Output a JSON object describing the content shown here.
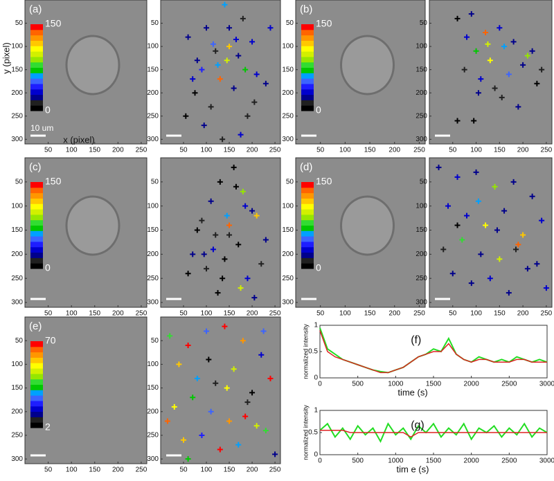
{
  "chart_data": [
    {
      "type": "image",
      "label": "(a)",
      "ylabel": "y (pixel)",
      "xlabel": "x (pixel)",
      "scalebar": "10 um",
      "cell": true,
      "colormap": [
        "#000000",
        "#202020",
        "#00008b",
        "#0000cd",
        "#1e1eff",
        "#3c64ff",
        "#00a0ff",
        "#00c800",
        "#32dc32",
        "#96e600",
        "#d2f000",
        "#ffff00",
        "#ffc800",
        "#ff9600",
        "#ff6400",
        "#ff0000"
      ],
      "clim": [
        0,
        150
      ],
      "cticks": [
        0,
        150
      ],
      "xlim": [
        0,
        262
      ],
      "ylim": [
        0,
        310
      ],
      "xticks": [
        50,
        100,
        150,
        200,
        250
      ],
      "yticks": [
        50,
        100,
        150,
        200,
        250,
        300
      ]
    },
    {
      "type": "scatter",
      "xlim": [
        0,
        262
      ],
      "ylim": [
        0,
        310
      ],
      "xticks": [
        50,
        100,
        150,
        200,
        250
      ],
      "yticks": [
        50,
        100,
        150,
        200,
        250,
        300
      ],
      "clim": [
        0,
        150
      ],
      "x": [
        140,
        100,
        60,
        180,
        200,
        120,
        150,
        90,
        170,
        210,
        130,
        75,
        160,
        110,
        190,
        240,
        55,
        145,
        125,
        95,
        175,
        230,
        165,
        115,
        80,
        205,
        135,
        185,
        150,
        70
      ],
      "y": [
        10,
        60,
        80,
        40,
        90,
        110,
        100,
        150,
        120,
        160,
        170,
        200,
        190,
        230,
        250,
        60,
        250,
        130,
        140,
        270,
        290,
        180,
        85,
        95,
        130,
        220,
        300,
        150,
        60,
        170
      ],
      "values": [
        60,
        20,
        25,
        10,
        30,
        15,
        120,
        40,
        20,
        35,
        140,
        5,
        25,
        15,
        10,
        30,
        8,
        100,
        60,
        20,
        35,
        22,
        30,
        50,
        28,
        10,
        15,
        70,
        25,
        33
      ]
    },
    {
      "type": "image",
      "label": "(b)",
      "cell": true,
      "colormap": [
        "#000000",
        "#202020",
        "#00008b",
        "#0000cd",
        "#1e1eff",
        "#3c64ff",
        "#00a0ff",
        "#00c800",
        "#32dc32",
        "#96e600",
        "#d2f000",
        "#ffff00",
        "#ffc800",
        "#ff9600",
        "#ff6400",
        "#ff0000"
      ],
      "clim": [
        0,
        150
      ],
      "cticks": [
        0,
        150
      ],
      "xlim": [
        0,
        262
      ],
      "ylim": [
        0,
        310
      ],
      "xticks": [
        50,
        100,
        150,
        200,
        250
      ],
      "yticks": [
        50,
        100,
        150,
        200,
        250,
        300
      ]
    },
    {
      "type": "scatter",
      "xlim": [
        0,
        262
      ],
      "ylim": [
        0,
        310
      ],
      "xticks": [
        50,
        100,
        150,
        200,
        250
      ],
      "yticks": [
        50,
        100,
        150,
        200,
        250,
        300
      ],
      "clim": [
        0,
        150
      ],
      "x": [
        60,
        90,
        120,
        150,
        100,
        180,
        210,
        75,
        130,
        160,
        200,
        230,
        110,
        140,
        170,
        95,
        190,
        220,
        80,
        125,
        155,
        240,
        60,
        105
      ],
      "y": [
        40,
        30,
        70,
        60,
        110,
        90,
        120,
        150,
        130,
        100,
        140,
        180,
        170,
        190,
        160,
        260,
        230,
        110,
        80,
        95,
        210,
        150,
        260,
        200
      ],
      "values": [
        5,
        25,
        140,
        30,
        70,
        20,
        90,
        10,
        110,
        60,
        25,
        8,
        30,
        15,
        50,
        5,
        20,
        28,
        35,
        100,
        18,
        12,
        6,
        22
      ]
    },
    {
      "type": "image",
      "label": "(c)",
      "cell": true,
      "colormap": [
        "#000000",
        "#202020",
        "#00008b",
        "#0000cd",
        "#1e1eff",
        "#3c64ff",
        "#00a0ff",
        "#00c800",
        "#32dc32",
        "#96e600",
        "#d2f000",
        "#ffff00",
        "#ffc800",
        "#ff9600",
        "#ff6400",
        "#ff0000"
      ],
      "clim": [
        0,
        150
      ],
      "cticks": [
        0,
        150
      ],
      "xlim": [
        0,
        262
      ],
      "ylim": [
        0,
        310
      ],
      "xticks": [
        50,
        100,
        150,
        200,
        250
      ],
      "yticks": [
        50,
        100,
        150,
        200,
        250,
        300
      ]
    },
    {
      "type": "scatter",
      "xlim": [
        0,
        262
      ],
      "ylim": [
        0,
        310
      ],
      "xticks": [
        50,
        100,
        150,
        200,
        250
      ],
      "yticks": [
        50,
        100,
        150,
        200,
        250,
        300
      ],
      "clim": [
        0,
        150
      ],
      "x": [
        160,
        130,
        110,
        180,
        200,
        90,
        150,
        120,
        170,
        210,
        70,
        140,
        100,
        190,
        230,
        60,
        145,
        125,
        95,
        175,
        220,
        165,
        115,
        80,
        205,
        135,
        185,
        150
      ],
      "y": [
        20,
        50,
        90,
        70,
        110,
        130,
        140,
        160,
        180,
        120,
        200,
        210,
        230,
        250,
        170,
        240,
        120,
        280,
        200,
        270,
        220,
        60,
        190,
        150,
        290,
        250,
        100,
        160
      ],
      "values": [
        5,
        8,
        20,
        90,
        25,
        10,
        140,
        15,
        5,
        120,
        22,
        8,
        10,
        30,
        25,
        5,
        60,
        8,
        28,
        100,
        12,
        6,
        35,
        5,
        20,
        8,
        30,
        10
      ]
    },
    {
      "type": "image",
      "label": "(d)",
      "cell": true,
      "colormap": [
        "#000000",
        "#202020",
        "#00008b",
        "#0000cd",
        "#1e1eff",
        "#3c64ff",
        "#00a0ff",
        "#00c800",
        "#32dc32",
        "#96e600",
        "#d2f000",
        "#ffff00",
        "#ffc800",
        "#ff9600",
        "#ff6400",
        "#ff0000"
      ],
      "clim": [
        0,
        150
      ],
      "cticks": [
        0,
        150
      ],
      "xlim": [
        0,
        262
      ],
      "ylim": [
        0,
        310
      ],
      "xticks": [
        50,
        100,
        150,
        200,
        250
      ],
      "yticks": [
        50,
        100,
        150,
        200,
        250,
        300
      ]
    },
    {
      "type": "scatter",
      "xlim": [
        0,
        262
      ],
      "ylim": [
        0,
        310
      ],
      "xticks": [
        50,
        100,
        150,
        200,
        250
      ],
      "yticks": [
        50,
        100,
        150,
        200,
        250,
        300
      ],
      "clim": [
        0,
        150
      ],
      "x": [
        20,
        60,
        100,
        140,
        180,
        220,
        40,
        80,
        120,
        160,
        200,
        240,
        30,
        70,
        110,
        150,
        190,
        230,
        50,
        90,
        130,
        170,
        210,
        250,
        105,
        145,
        185,
        60
      ],
      "y": [
        20,
        40,
        30,
        60,
        50,
        80,
        100,
        120,
        140,
        110,
        160,
        130,
        190,
        170,
        200,
        210,
        180,
        220,
        240,
        260,
        250,
        280,
        230,
        270,
        90,
        150,
        190,
        140
      ],
      "values": [
        25,
        30,
        20,
        90,
        28,
        22,
        30,
        35,
        110,
        25,
        120,
        30,
        10,
        80,
        20,
        100,
        140,
        25,
        28,
        22,
        30,
        25,
        20,
        30,
        60,
        20,
        10,
        5
      ]
    },
    {
      "type": "image",
      "label": "(e)",
      "cell": false,
      "colormap": [
        "#000000",
        "#202020",
        "#00008b",
        "#0000cd",
        "#1e1eff",
        "#3c64ff",
        "#00a0ff",
        "#00c800",
        "#32dc32",
        "#96e600",
        "#d2f000",
        "#ffff00",
        "#ffc800",
        "#ff9600",
        "#ff6400",
        "#ff0000"
      ],
      "clim": [
        2,
        70
      ],
      "cticks": [
        2,
        70
      ],
      "xlim": [
        0,
        262
      ],
      "ylim": [
        0,
        310
      ],
      "xticks": [
        50,
        100,
        150,
        200,
        250
      ],
      "yticks": [
        50,
        100,
        150,
        200,
        250,
        300
      ]
    },
    {
      "type": "scatter",
      "xlim": [
        0,
        262
      ],
      "ylim": [
        0,
        310
      ],
      "xticks": [
        50,
        100,
        150,
        200,
        250
      ],
      "yticks": [
        50,
        100,
        150,
        200,
        250,
        300
      ],
      "clim": [
        2,
        70
      ],
      "x": [
        20,
        60,
        100,
        140,
        180,
        220,
        40,
        80,
        120,
        160,
        200,
        240,
        30,
        70,
        110,
        150,
        190,
        230,
        50,
        90,
        130,
        170,
        210,
        250,
        105,
        145,
        185,
        60,
        225,
        15
      ],
      "y": [
        40,
        60,
        30,
        20,
        50,
        80,
        100,
        130,
        140,
        110,
        160,
        130,
        190,
        170,
        200,
        220,
        180,
        240,
        260,
        250,
        280,
        270,
        230,
        290,
        90,
        150,
        210,
        300,
        30,
        220
      ],
      "values": [
        40,
        68,
        25,
        68,
        60,
        15,
        55,
        30,
        10,
        45,
        3,
        68,
        50,
        35,
        25,
        60,
        8,
        40,
        55,
        20,
        66,
        30,
        45,
        12,
        5,
        50,
        68,
        35,
        25,
        62
      ]
    },
    {
      "type": "line",
      "label": "(f)",
      "ylabel": "normalized intensity",
      "xlabel": "time (s)",
      "xlim": [
        0,
        3000
      ],
      "ylim": [
        0,
        1
      ],
      "xticks": [
        0,
        500,
        1000,
        1500,
        2000,
        2500,
        3000
      ],
      "yticks": [
        0,
        0.5,
        1
      ],
      "x": [
        0,
        100,
        200,
        300,
        400,
        500,
        600,
        700,
        800,
        900,
        1000,
        1100,
        1200,
        1300,
        1400,
        1500,
        1600,
        1700,
        1800,
        1900,
        2000,
        2100,
        2200,
        2300,
        2400,
        2500,
        2600,
        2700,
        2800,
        2900,
        3000
      ],
      "series": [
        {
          "color": "#22dd22",
          "values": [
            0.95,
            0.55,
            0.45,
            0.35,
            0.3,
            0.25,
            0.2,
            0.15,
            0.12,
            0.1,
            0.15,
            0.2,
            0.3,
            0.4,
            0.45,
            0.55,
            0.5,
            0.75,
            0.45,
            0.35,
            0.3,
            0.4,
            0.35,
            0.3,
            0.35,
            0.3,
            0.4,
            0.35,
            0.3,
            0.35,
            0.3
          ]
        },
        {
          "color": "#dd2222",
          "values": [
            0.9,
            0.5,
            0.4,
            0.35,
            0.3,
            0.25,
            0.2,
            0.15,
            0.1,
            0.1,
            0.15,
            0.2,
            0.3,
            0.4,
            0.45,
            0.5,
            0.5,
            0.65,
            0.45,
            0.35,
            0.3,
            0.35,
            0.35,
            0.3,
            0.3,
            0.3,
            0.35,
            0.35,
            0.3,
            0.3,
            0.3
          ]
        }
      ]
    },
    {
      "type": "line",
      "label": "(g)",
      "ylabel": "normalized intensity",
      "xlabel": "tim e (s)",
      "xlim": [
        0,
        3000
      ],
      "ylim": [
        0,
        1
      ],
      "xticks": [
        0,
        500,
        1000,
        1500,
        2000,
        2500,
        3000
      ],
      "yticks": [
        0,
        0.5,
        1
      ],
      "x": [
        0,
        100,
        200,
        300,
        400,
        500,
        600,
        700,
        800,
        900,
        1000,
        1100,
        1200,
        1300,
        1400,
        1500,
        1600,
        1700,
        1800,
        1900,
        2000,
        2100,
        2200,
        2300,
        2400,
        2500,
        2600,
        2700,
        2800,
        2900,
        3000
      ],
      "series": [
        {
          "color": "#22dd22",
          "values": [
            0.55,
            0.7,
            0.4,
            0.6,
            0.35,
            0.65,
            0.45,
            0.6,
            0.3,
            0.7,
            0.45,
            0.6,
            0.35,
            0.65,
            0.5,
            0.7,
            0.4,
            0.6,
            0.45,
            0.7,
            0.35,
            0.6,
            0.5,
            0.65,
            0.4,
            0.6,
            0.45,
            0.7,
            0.4,
            0.6,
            0.5
          ]
        },
        {
          "color": "#dd2222",
          "values": [
            0.55,
            0.55,
            0.55,
            0.55,
            0.5,
            0.5,
            0.5,
            0.5,
            0.5,
            0.5,
            0.5,
            0.5,
            0.4,
            0.5,
            0.5,
            0.5,
            0.5,
            0.5,
            0.5,
            0.5,
            0.5,
            0.5,
            0.5,
            0.5,
            0.5,
            0.5,
            0.5,
            0.5,
            0.5,
            0.5,
            0.5
          ]
        }
      ]
    }
  ]
}
